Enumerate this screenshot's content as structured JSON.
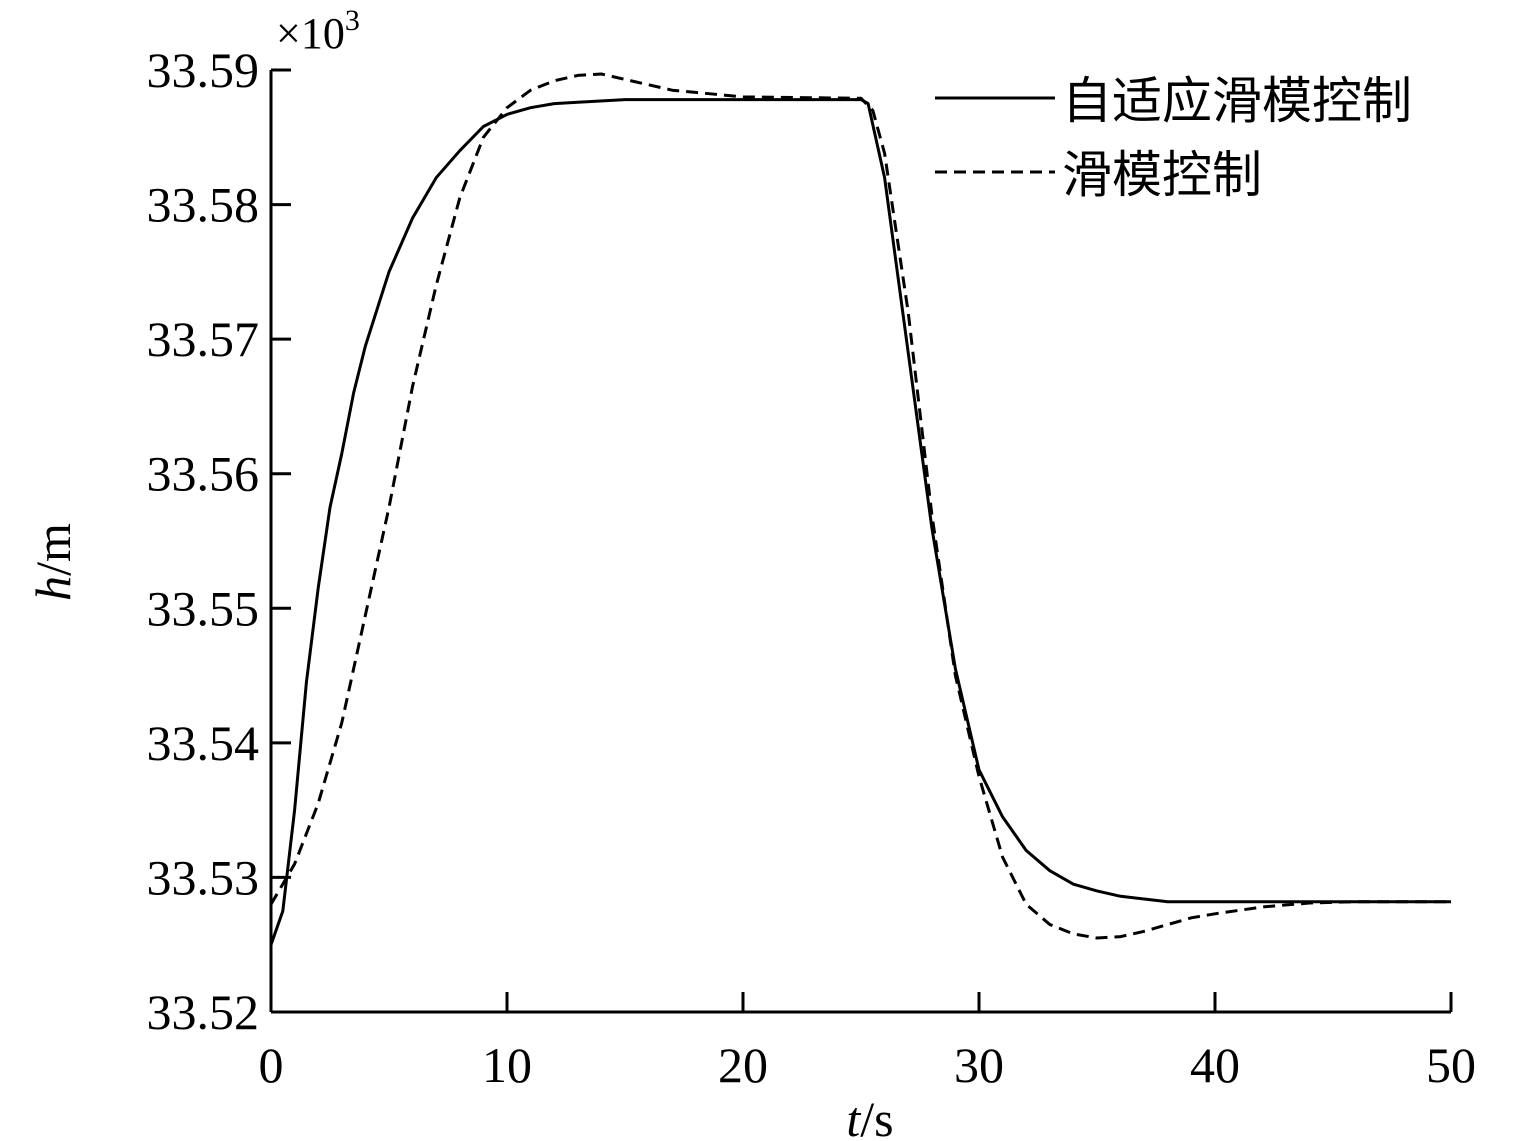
{
  "chart_data": {
    "type": "line",
    "xlabel_var": "t",
    "xlabel_unit": "/s",
    "ylabel_var": "h",
    "ylabel_unit": "/m",
    "y_multiplier_base": "×10",
    "y_multiplier_exp": "3",
    "xlim": [
      0,
      50
    ],
    "ylim": [
      33.52,
      33.59
    ],
    "x_ticks": [
      0,
      10,
      20,
      30,
      40,
      50
    ],
    "x_tick_labels": [
      "0",
      "10",
      "20",
      "30",
      "40",
      "50"
    ],
    "y_ticks": [
      33.52,
      33.53,
      33.54,
      33.55,
      33.56,
      33.57,
      33.58,
      33.59
    ],
    "y_tick_labels": [
      "33.52",
      "33.53",
      "33.54",
      "33.55",
      "33.56",
      "33.57",
      "33.58",
      "33.59"
    ],
    "grid": false,
    "legend_position": "top-right",
    "series": [
      {
        "name": "自适应滑模控制",
        "style": "solid",
        "color": "#000000",
        "x": [
          0,
          0.5,
          1,
          1.5,
          2,
          2.5,
          3,
          3.5,
          4,
          5,
          6,
          7,
          8,
          9,
          10,
          11,
          12,
          13,
          15,
          20,
          25,
          25.3,
          26,
          27,
          28,
          29,
          30,
          31,
          32,
          33,
          34,
          35,
          36,
          37,
          38,
          40,
          45,
          50
        ],
        "y": [
          33.525,
          33.5275,
          33.535,
          33.5445,
          33.5515,
          33.5575,
          33.5615,
          33.566,
          33.5695,
          33.575,
          33.579,
          33.582,
          33.584,
          33.5858,
          33.5867,
          33.5872,
          33.5875,
          33.5876,
          33.5878,
          33.5878,
          33.5878,
          33.5875,
          33.582,
          33.569,
          33.556,
          33.5455,
          33.538,
          33.5345,
          33.532,
          33.5305,
          33.5295,
          33.529,
          33.5286,
          33.5284,
          33.5282,
          33.5282,
          33.5282,
          33.5282
        ]
      },
      {
        "name": "滑模控制",
        "style": "dashed",
        "color": "#000000",
        "x": [
          0,
          1,
          2,
          3,
          4,
          5,
          6,
          7,
          8,
          9,
          10,
          11,
          12,
          13,
          14,
          15,
          17,
          20,
          25,
          25.5,
          26,
          27,
          28,
          29,
          30,
          31,
          32,
          33,
          34,
          35,
          36,
          37,
          38,
          39,
          40,
          42,
          44,
          46,
          50
        ],
        "y": [
          33.528,
          33.531,
          33.5355,
          33.5415,
          33.5495,
          33.5575,
          33.5665,
          33.574,
          33.5805,
          33.585,
          33.5872,
          33.5885,
          33.5892,
          33.5896,
          33.5897,
          33.5893,
          33.5885,
          33.588,
          33.5879,
          33.587,
          33.5838,
          33.572,
          33.557,
          33.545,
          33.5375,
          33.5315,
          33.528,
          33.5265,
          33.5258,
          33.5255,
          33.5256,
          33.526,
          33.5265,
          33.527,
          33.5273,
          33.5278,
          33.5281,
          33.5282,
          33.5282
        ]
      }
    ]
  }
}
